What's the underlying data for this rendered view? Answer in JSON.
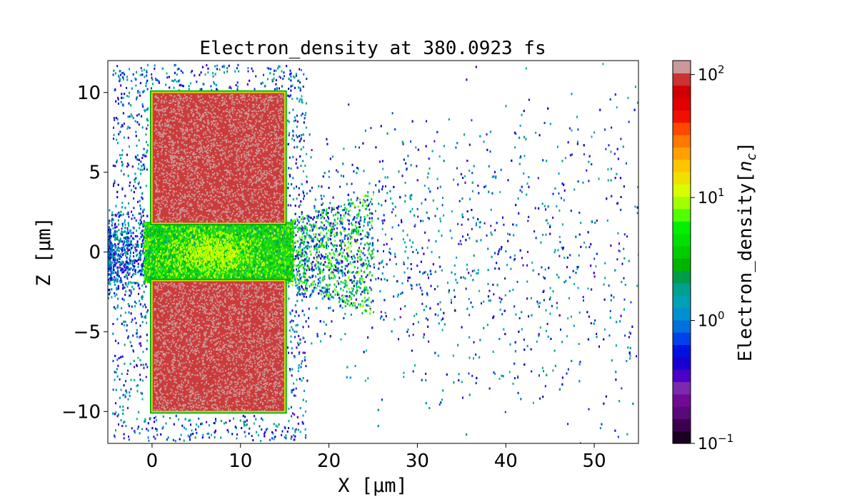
{
  "chart_data": {
    "type": "heatmap",
    "title": "Electron_density at 380.0923 fs",
    "xlabel": "X [μm]",
    "ylabel": "Z [μm]",
    "xlim": [
      -5,
      55
    ],
    "ylim": [
      -12,
      12
    ],
    "x_ticks": [
      0,
      10,
      20,
      30,
      40,
      50
    ],
    "y_ticks": [
      -10,
      -5,
      0,
      5,
      10
    ],
    "x_tick_labels": [
      "0",
      "10",
      "20",
      "30",
      "40",
      "50"
    ],
    "y_tick_labels": [
      "−10",
      "−5",
      "0",
      "5",
      "10"
    ],
    "colorscale": "log",
    "colorbar": {
      "label": "Electron_density[n_c]",
      "label_main": "Electron_density[",
      "label_var": "n",
      "label_sub": "c",
      "label_end": "]",
      "range": [
        0.1,
        130
      ],
      "ticks": [
        0.1,
        1,
        10,
        100
      ],
      "tick_base": "10",
      "tick_exps": [
        "−1",
        "0",
        "1",
        "2"
      ],
      "colors": [
        "#1a0022",
        "#3d0050",
        "#5a0a78",
        "#720a95",
        "#7b2ab0",
        "#4b00c8",
        "#1800d0",
        "#0010e0",
        "#0040e8",
        "#0070dd",
        "#0090d0",
        "#00a0b5",
        "#00a090",
        "#009c4a",
        "#00b400",
        "#00cc00",
        "#00e000",
        "#00f000",
        "#50ff00",
        "#a0ff00",
        "#d8ff00",
        "#f0e000",
        "#ffc400",
        "#ffa000",
        "#ff7800",
        "#ff4800",
        "#f01000",
        "#e00000",
        "#d00000",
        "#cc3333",
        "#cc9999"
      ]
    },
    "regions": [
      {
        "name": "upper target block",
        "x": [
          0,
          15
        ],
        "z": [
          1.8,
          10
        ],
        "density": "above 100 (saturated)",
        "color": "#cc3b3b"
      },
      {
        "name": "lower target block",
        "x": [
          0,
          15
        ],
        "z": [
          -10,
          -1.8
        ],
        "density": "above 100 (saturated)",
        "color": "#cc3b3b"
      },
      {
        "name": "channel electron jet",
        "x": [
          -0.5,
          22
        ],
        "z": [
          -1.8,
          1.8
        ],
        "density": "about 2 to 12",
        "color": "#22dd00"
      },
      {
        "name": "scattered electron halo",
        "x": [
          -5,
          55
        ],
        "z": [
          -12,
          12
        ],
        "density": "about 0.2 to 2"
      }
    ]
  }
}
